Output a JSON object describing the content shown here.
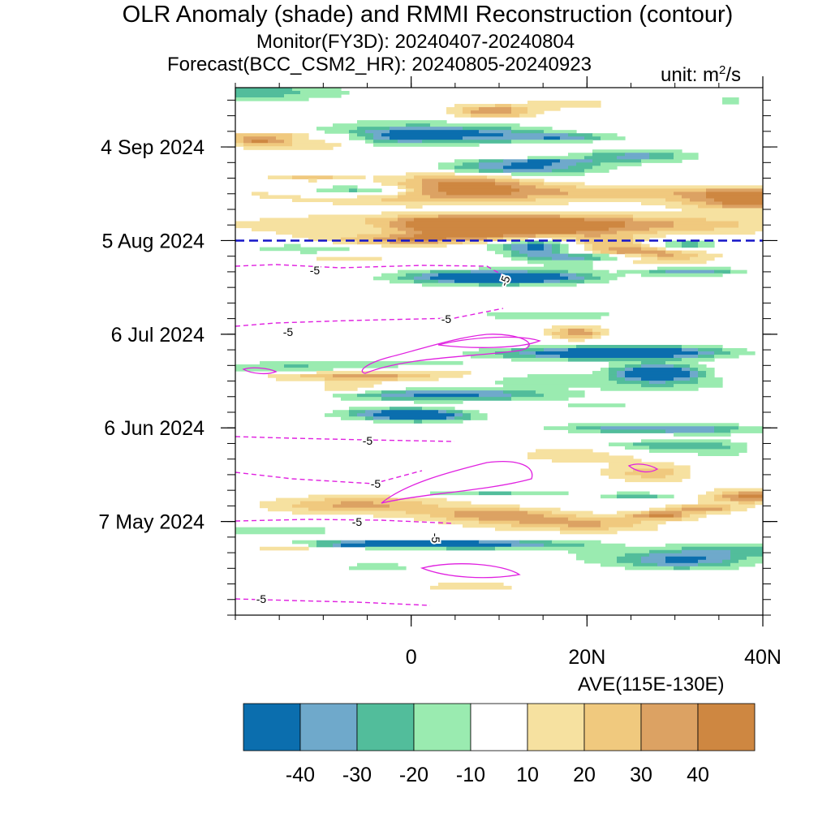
{
  "title": "OLR Anomaly (shade) and RMMI Reconstruction (contour)",
  "subtitle_monitor": "Monitor(FY3D): 20240407-20240804",
  "subtitle_forecast": "Forecast(BCC_CSM2_HR): 20240805-20240923",
  "unit_prefix": "unit: m",
  "unit_exponent": "2",
  "unit_suffix": "/s",
  "average_label": "AVE(115E-130E)",
  "chart_data": {
    "type": "heatmap",
    "x_axis": {
      "range": [
        -20,
        40
      ],
      "ticks": [
        0,
        20,
        40
      ],
      "tick_labels": [
        "0",
        "20N",
        "40N"
      ]
    },
    "y_axis": {
      "range": [
        "2024-04-07",
        "2024-09-23"
      ],
      "ticks": [
        "2024-05-07",
        "2024-06-06",
        "2024-07-06",
        "2024-08-05",
        "2024-09-04"
      ],
      "tick_labels": [
        "7 May 2024",
        "6 Jun 2024",
        "6 Jul 2024",
        "5 Aug 2024",
        "4 Sep 2024"
      ]
    },
    "forecast_start_line": "2024-08-05",
    "colorbar": {
      "levels": [
        "-40",
        "-30",
        "-20",
        "-10",
        "10",
        "20",
        "30",
        "40"
      ],
      "colors": [
        "#0b6eae",
        "#6fa9cb",
        "#52bd9b",
        "#9aebb0",
        "#ffffff",
        "#f6e1a0",
        "#f0c97e",
        "#dca263",
        "#ce8741"
      ]
    },
    "contour_labels": [
      "-5",
      "-5",
      "-5",
      "-5",
      "-5",
      "-5",
      "-5",
      "-5",
      "-5"
    ]
  }
}
